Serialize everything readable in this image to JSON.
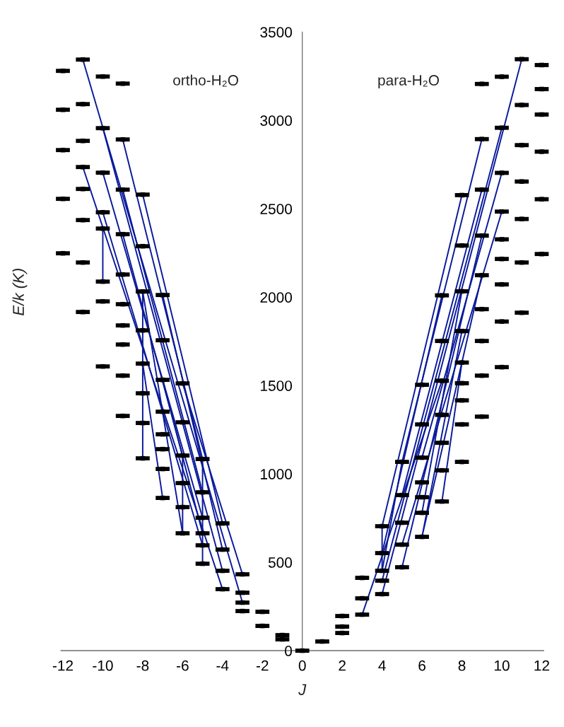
{
  "chart_data": {
    "type": "scatter",
    "xlabel": "J",
    "ylabel": "E/k (K)",
    "annotations": [
      "ortho-H₂O",
      "para-H₂O"
    ],
    "xlim": [
      -12.1,
      12.1
    ],
    "xticks": [
      -12,
      -10,
      -8,
      -6,
      -4,
      -2,
      0,
      2,
      4,
      6,
      8,
      10,
      12
    ],
    "ylim": [
      0,
      3500
    ],
    "yticks": [
      0,
      500,
      1000,
      1500,
      2000,
      2500,
      3000,
      3500
    ],
    "grid": false,
    "series": [
      {
        "type": "line",
        "color": "#0a1a9a",
        "x": [
          -11,
          -3
        ],
        "values": [
          3344,
          272
        ]
      },
      {
        "type": "line",
        "color": "#0a1a9a",
        "x": [
          -10,
          -4
        ],
        "values": [
          2956,
          452
        ]
      },
      {
        "type": "line",
        "color": "#0a1a9a",
        "x": [
          -9,
          -5,
          -5
        ],
        "values": [
          2892,
          1084,
          492
        ]
      },
      {
        "type": "line",
        "color": "#0a1a9a",
        "x": [
          -8,
          -4
        ],
        "values": [
          2580,
          720
        ]
      },
      {
        "type": "line",
        "color": "#0a1a9a",
        "x": [
          -10,
          -5
        ],
        "values": [
          2704,
          752
        ]
      },
      {
        "type": "line",
        "color": "#0a1a9a",
        "x": [
          -9,
          -5
        ],
        "values": [
          2608,
          896
        ]
      },
      {
        "type": "line",
        "color": "#0a1a9a",
        "x": [
          -7,
          -4
        ],
        "values": [
          2012,
          572
        ]
      },
      {
        "type": "line",
        "color": "#0a1a9a",
        "x": [
          -6,
          -3
        ],
        "values": [
          1512,
          432
        ]
      },
      {
        "type": "line",
        "color": "#0a1a9a",
        "x": [
          -11,
          -4
        ],
        "values": [
          2736,
          348
        ]
      },
      {
        "type": "line",
        "color": "#0a1a9a",
        "x": [
          -10,
          -5
        ],
        "values": [
          2480,
          596
        ]
      },
      {
        "type": "line",
        "color": "#0a1a9a",
        "x": [
          -10,
          -10
        ],
        "values": [
          2388,
          2088
        ]
      },
      {
        "type": "line",
        "color": "#0a1a9a",
        "x": [
          -9,
          -6,
          -6
        ],
        "values": [
          2356,
          1104,
          664
        ]
      },
      {
        "type": "line",
        "color": "#0a1a9a",
        "x": [
          -8,
          -8,
          -6
        ],
        "values": [
          1088,
          2032,
          664
        ]
      },
      {
        "type": "line",
        "color": "#0a1a9a",
        "x": [
          -8,
          -7
        ],
        "values": [
          1624,
          864
        ]
      },
      {
        "type": "line",
        "color": "#0a1a9a",
        "x": [
          -7,
          -5
        ],
        "values": [
          1532,
          664
        ]
      },
      {
        "type": "line",
        "color": "#0a1a9a",
        "x": [
          11,
          4
        ],
        "values": [
          3346,
          320
        ]
      },
      {
        "type": "line",
        "color": "#0a1a9a",
        "x": [
          10,
          4
        ],
        "values": [
          2958,
          396
        ]
      },
      {
        "type": "line",
        "color": "#0a1a9a",
        "x": [
          9,
          5,
          4
        ],
        "values": [
          2894,
          1068,
          452
        ]
      },
      {
        "type": "line",
        "color": "#0a1a9a",
        "x": [
          8,
          4,
          4
        ],
        "values": [
          2577,
          704,
          452
        ]
      },
      {
        "type": "line",
        "color": "#0a1a9a",
        "x": [
          10,
          6
        ],
        "values": [
          2703,
          1092
        ]
      },
      {
        "type": "line",
        "color": "#0a1a9a",
        "x": [
          9,
          5
        ],
        "values": [
          2608,
          880
        ]
      },
      {
        "type": "line",
        "color": "#0a1a9a",
        "x": [
          7,
          4
        ],
        "values": [
          2010,
          552
        ]
      },
      {
        "type": "line",
        "color": "#0a1a9a",
        "x": [
          8,
          6
        ],
        "values": [
          2033,
          780
        ]
      },
      {
        "type": "line",
        "color": "#0a1a9a",
        "x": [
          8,
          7
        ],
        "values": [
          1630,
          844
        ]
      },
      {
        "type": "line",
        "color": "#0a1a9a",
        "x": [
          10,
          5
        ],
        "values": [
          2484,
          600
        ]
      },
      {
        "type": "line",
        "color": "#0a1a9a",
        "x": [
          9,
          5
        ],
        "values": [
          2348,
          472
        ]
      },
      {
        "type": "line",
        "color": "#0a1a9a",
        "x": [
          8,
          6,
          9
        ],
        "values": [
          1808,
          644,
          2124
        ]
      },
      {
        "type": "line",
        "color": "#0a1a9a",
        "x": [
          7,
          3
        ],
        "values": [
          1527,
          204
        ]
      },
      {
        "color": "#000000",
        "marker": "square",
        "xerrors": [
          0.35,
          0.35,
          0.35,
          0.35,
          0.35,
          0.35,
          0.35,
          0.35,
          0.35,
          0.35,
          0.35,
          0.35,
          0.35,
          0.35,
          0.35,
          0.35,
          0.35,
          0.35,
          0.35,
          0.35,
          0.35,
          0.35,
          0.35,
          0.35,
          0.35,
          0.35,
          0.35,
          0.35,
          0.35,
          0.35,
          0.35,
          0.35,
          0.35,
          0.35,
          0.35,
          0.35,
          0.35,
          0.35,
          0.35,
          0.35,
          0.35,
          0.35,
          0.35,
          0.35,
          0.35,
          0.35,
          0.35,
          0.35,
          0.35,
          0.35,
          0.35,
          0.35,
          0.35,
          0.35,
          0.35,
          0.35,
          0.35,
          0.35,
          0.35,
          0.35,
          0.35,
          0.35,
          0.35,
          0.35,
          0.35,
          0.35,
          0.35,
          0.35,
          0.35,
          0.35,
          0.35,
          0.35,
          0.35,
          0.35,
          0.35,
          0.35,
          0.35,
          0.35,
          0.35,
          0.35,
          0.35,
          0.35,
          0.35,
          0.35,
          0.35,
          0.35,
          0.35,
          0.35,
          0.35,
          0.35,
          0.35,
          0.35,
          0.35,
          0.35,
          0.35,
          0.35,
          0.35,
          0.35,
          0.35,
          0.35,
          0.35,
          0.35,
          0.35,
          0.35,
          0.35,
          0.35,
          0.35,
          0.35,
          0.35,
          0.35,
          0.35,
          0.35,
          0.35,
          0.35,
          0.35,
          0.35,
          0.35,
          0.35,
          0.35,
          0.35,
          0.35,
          0.35,
          0.35,
          0.35,
          0.35,
          0.35,
          0.35,
          0.35,
          0.35,
          0.35,
          0.35,
          0.35,
          0.35,
          0.35,
          0.35,
          0.35,
          0.35,
          0.35,
          0.35,
          0.35,
          0.35,
          0.35,
          0.35
        ],
        "x": [
          -12,
          -12,
          -12,
          -12,
          -12,
          -11,
          -11,
          -11,
          -11,
          -11,
          -11,
          -11,
          -11,
          -10,
          -10,
          -10,
          -10,
          -10,
          -10,
          -10,
          -10,
          -9,
          -9,
          -9,
          -9,
          -9,
          -9,
          -9,
          -9,
          -9,
          -9,
          -8,
          -8,
          -8,
          -8,
          -8,
          -8,
          -8,
          -8,
          -7,
          -7,
          -7,
          -7,
          -7,
          -7,
          -7,
          -7,
          -6,
          -6,
          -6,
          -6,
          -6,
          -6,
          -5,
          -5,
          -5,
          -5,
          -5,
          -5,
          -4,
          -4,
          -4,
          -4,
          -3,
          -3,
          -3,
          -3,
          -2,
          -2,
          -1,
          -1,
          0,
          1,
          2,
          2,
          2,
          3,
          3,
          3,
          4,
          4,
          4,
          4,
          4,
          5,
          5,
          5,
          5,
          5,
          6,
          6,
          6,
          6,
          6,
          6,
          6,
          7,
          7,
          7,
          7,
          7,
          7,
          7,
          8,
          8,
          8,
          8,
          8,
          8,
          8,
          8,
          8,
          9,
          9,
          9,
          9,
          9,
          9,
          9,
          9,
          9,
          10,
          10,
          10,
          10,
          10,
          10,
          10,
          10,
          10,
          11,
          11,
          11,
          11,
          11,
          11,
          11,
          12,
          12,
          12,
          12,
          12,
          12
        ],
        "values": [
          3280,
          3060,
          2832,
          2556,
          2248,
          3344,
          3092,
          2884,
          2736,
          2612,
          2436,
          2196,
          1916,
          3248,
          2956,
          2704,
          2480,
          2388,
          2088,
          1976,
          1608,
          3208,
          2892,
          2608,
          2356,
          2128,
          1960,
          1840,
          1732,
          1556,
          1328,
          2580,
          2288,
          2032,
          1812,
          1624,
          1456,
          1288,
          1088,
          2012,
          1756,
          1532,
          1352,
          1224,
          1140,
          1028,
          864,
          1512,
          1292,
          1104,
          948,
          812,
          664,
          1084,
          896,
          752,
          664,
          596,
          492,
          720,
          572,
          452,
          348,
          432,
          328,
          272,
          224,
          220,
          140,
          88,
          64,
          0,
          52,
          196,
          136,
          100,
          412,
          296,
          204,
          704,
          552,
          452,
          396,
          320,
          1068,
          880,
          724,
          600,
          472,
          1504,
          1280,
          1092,
          952,
          868,
          780,
          644,
          2010,
          1752,
          1527,
          1334,
          1176,
          1020,
          844,
          2577,
          2292,
          2033,
          1808,
          1630,
          1513,
          1416,
          1280,
          1068,
          3206,
          2894,
          2608,
          2348,
          2124,
          1932,
          1752,
          1556,
          1324,
          3247,
          2958,
          2703,
          2484,
          2327,
          2216,
          2072,
          1862,
          1604,
          3346,
          3087,
          2860,
          2654,
          2442,
          2196,
          1912,
          3313,
          3177,
          3033,
          2823,
          2554,
          2244
        ]
      }
    ]
  }
}
